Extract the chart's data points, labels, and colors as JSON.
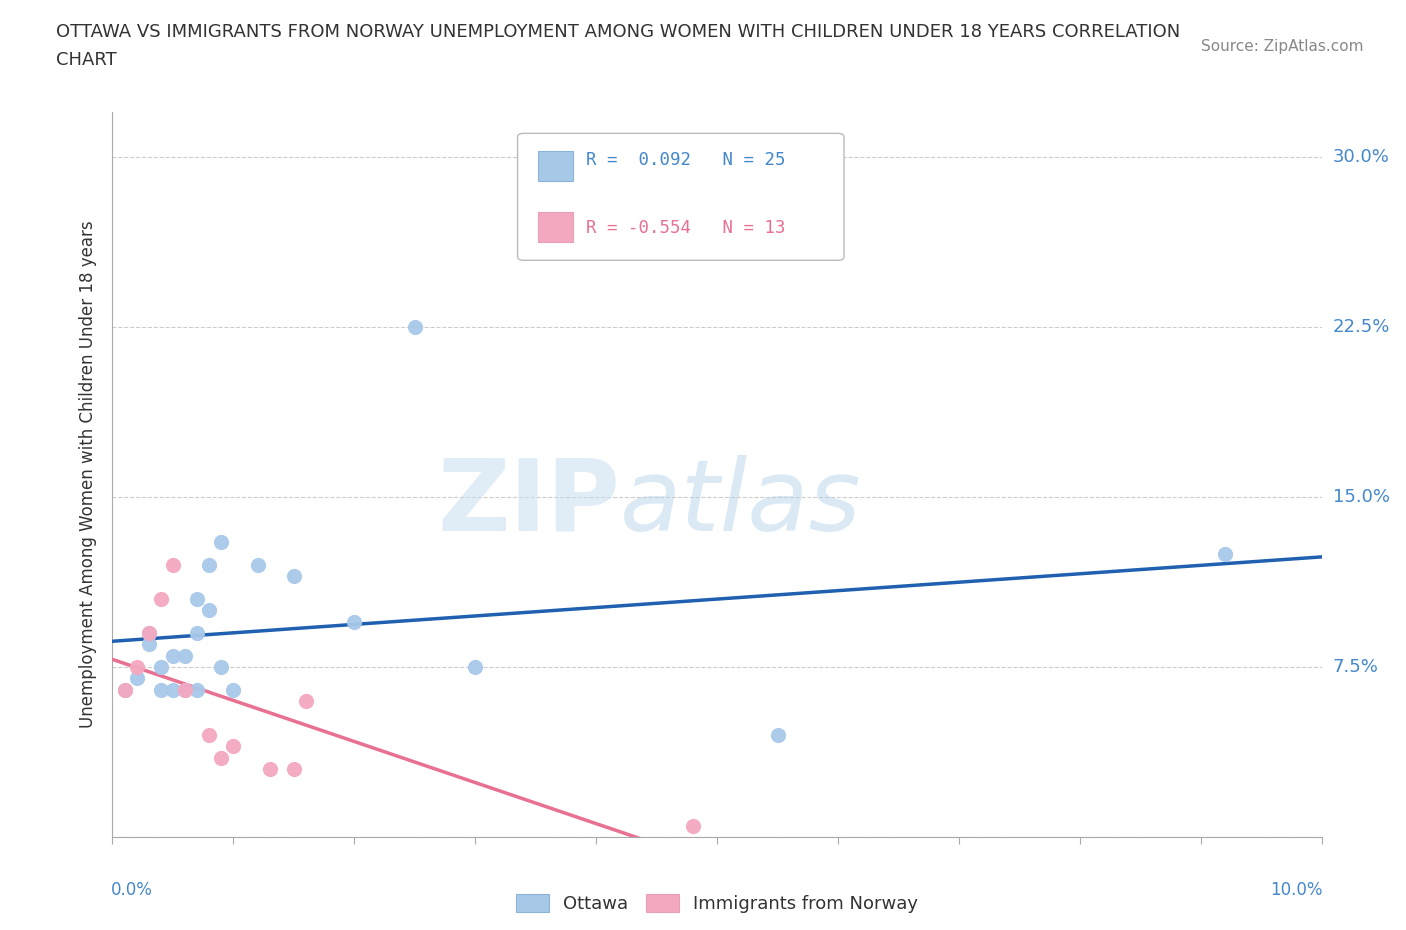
{
  "title_line1": "OTTAWA VS IMMIGRANTS FROM NORWAY UNEMPLOYMENT AMONG WOMEN WITH CHILDREN UNDER 18 YEARS CORRELATION",
  "title_line2": "CHART",
  "source": "Source: ZipAtlas.com",
  "ylabel": "Unemployment Among Women with Children Under 18 years",
  "yticks": [
    0.0,
    0.075,
    0.15,
    0.225,
    0.3
  ],
  "ytick_labels": [
    "",
    "7.5%",
    "15.0%",
    "22.5%",
    "30.0%"
  ],
  "xlim": [
    0.0,
    0.1
  ],
  "ylim": [
    0.0,
    0.32
  ],
  "ottawa_color": "#a8c8e8",
  "norway_color": "#f4a8c0",
  "ottawa_line_color": "#2060b0",
  "norway_line_color": "#e87090",
  "ottawa_points_x": [
    0.001,
    0.002,
    0.003,
    0.003,
    0.004,
    0.004,
    0.005,
    0.005,
    0.006,
    0.006,
    0.007,
    0.007,
    0.007,
    0.008,
    0.008,
    0.009,
    0.009,
    0.01,
    0.012,
    0.015,
    0.02,
    0.025,
    0.03,
    0.055,
    0.092
  ],
  "ottawa_points_y": [
    0.065,
    0.07,
    0.085,
    0.09,
    0.065,
    0.075,
    0.065,
    0.08,
    0.065,
    0.08,
    0.065,
    0.09,
    0.105,
    0.1,
    0.12,
    0.075,
    0.13,
    0.065,
    0.12,
    0.115,
    0.095,
    0.225,
    0.075,
    0.045,
    0.125
  ],
  "norway_points_x": [
    0.001,
    0.002,
    0.003,
    0.004,
    0.005,
    0.006,
    0.008,
    0.009,
    0.01,
    0.013,
    0.015,
    0.016,
    0.048
  ],
  "norway_points_y": [
    0.065,
    0.075,
    0.09,
    0.105,
    0.12,
    0.065,
    0.045,
    0.035,
    0.04,
    0.03,
    0.03,
    0.06,
    0.005
  ],
  "background_color": "#ffffff",
  "grid_color": "#cccccc",
  "watermark_zip": "ZIP",
  "watermark_atlas": "atlas",
  "legend_r1_text": "R =  0.092   N = 25",
  "legend_r2_text": "R = -0.554   N = 13",
  "legend_r1_color": "#4488cc",
  "legend_r2_color": "#e87090",
  "ytick_color": "#4488cc",
  "xtick_color": "#4488cc",
  "title_color": "#333333",
  "source_color": "#888888",
  "ylabel_color": "#333333"
}
